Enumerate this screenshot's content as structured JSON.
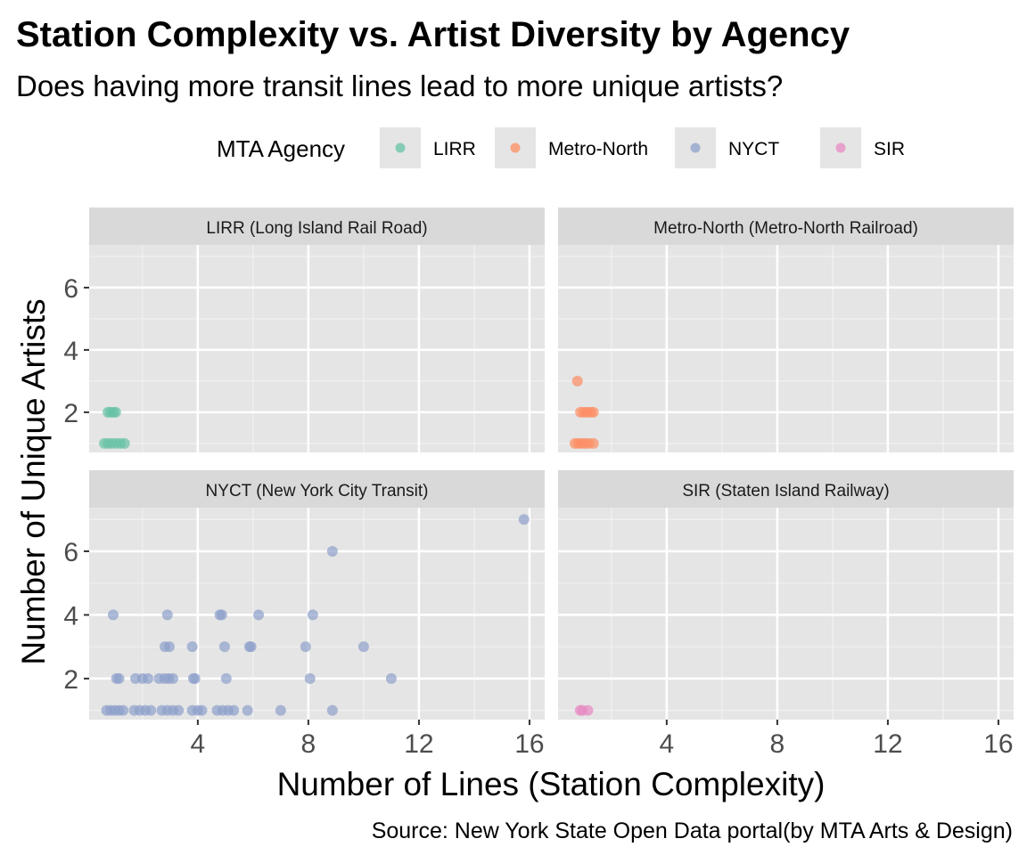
{
  "chart_data": {
    "type": "scatter",
    "title": "Station Complexity vs. Artist Diversity by Agency",
    "subtitle": "Does having more transit lines lead to more unique artists?",
    "xlabel": "Number of Lines (Station Complexity)",
    "ylabel": "Number of Unique Artists",
    "caption": "Source: New York State Open Data portal(by MTA Arts & Design)",
    "xlim": [
      0.07,
      16.55
    ],
    "ylim": [
      0.71,
      7.37
    ],
    "xticks": [
      4,
      8,
      12,
      16
    ],
    "yticks": [
      2,
      4,
      6
    ],
    "grid": true,
    "legend": {
      "title": "MTA Agency",
      "placement": "top",
      "entries": [
        {
          "label": "LIRR",
          "color": "#66c2a5"
        },
        {
          "label": "Metro-North",
          "color": "#fc8d62"
        },
        {
          "label": "NYCT",
          "color": "#8da0cb"
        },
        {
          "label": "SIR",
          "color": "#e78ac3"
        }
      ]
    },
    "facets": [
      {
        "label": "LIRR (Long Island Rail Road)",
        "color": "#66c2a5",
        "points": [
          [
            0.75,
            2
          ],
          [
            0.85,
            2
          ],
          [
            0.95,
            2
          ],
          [
            1.03,
            2
          ],
          [
            0.62,
            1
          ],
          [
            0.75,
            1
          ],
          [
            0.9,
            1
          ],
          [
            1.05,
            1
          ],
          [
            1.2,
            1
          ],
          [
            1.35,
            1
          ]
        ]
      },
      {
        "label": "Metro-North (Metro-North Railroad)",
        "color": "#fc8d62",
        "points": [
          [
            0.77,
            3
          ],
          [
            0.88,
            2
          ],
          [
            1.0,
            2
          ],
          [
            1.12,
            2
          ],
          [
            1.25,
            2
          ],
          [
            1.35,
            2
          ],
          [
            0.68,
            1
          ],
          [
            0.8,
            1
          ],
          [
            0.92,
            1
          ],
          [
            1.05,
            1
          ],
          [
            1.18,
            1
          ],
          [
            1.35,
            1
          ]
        ]
      },
      {
        "label": "NYCT (New York City Transit)",
        "color": "#8da0cb",
        "points": [
          [
            15.8,
            7
          ],
          [
            8.87,
            6
          ],
          [
            0.94,
            4
          ],
          [
            2.9,
            4
          ],
          [
            4.8,
            4
          ],
          [
            4.87,
            4
          ],
          [
            6.2,
            4
          ],
          [
            8.16,
            4
          ],
          [
            2.81,
            3
          ],
          [
            2.97,
            3
          ],
          [
            3.8,
            3
          ],
          [
            4.97,
            3
          ],
          [
            5.87,
            3
          ],
          [
            5.93,
            3
          ],
          [
            7.9,
            3
          ],
          [
            10.0,
            3
          ],
          [
            1.06,
            2
          ],
          [
            1.15,
            2
          ],
          [
            1.75,
            2
          ],
          [
            2.0,
            2
          ],
          [
            2.2,
            2
          ],
          [
            2.6,
            2
          ],
          [
            2.8,
            2
          ],
          [
            2.95,
            2
          ],
          [
            3.1,
            2
          ],
          [
            3.84,
            2
          ],
          [
            3.9,
            2
          ],
          [
            5.03,
            2
          ],
          [
            8.06,
            2
          ],
          [
            11.0,
            2
          ],
          [
            0.7,
            1
          ],
          [
            0.85,
            1
          ],
          [
            1.0,
            1
          ],
          [
            1.15,
            1
          ],
          [
            1.3,
            1
          ],
          [
            1.7,
            1
          ],
          [
            1.9,
            1
          ],
          [
            2.1,
            1
          ],
          [
            2.3,
            1
          ],
          [
            2.7,
            1
          ],
          [
            2.9,
            1
          ],
          [
            3.1,
            1
          ],
          [
            3.3,
            1
          ],
          [
            3.8,
            1
          ],
          [
            4.0,
            1
          ],
          [
            4.15,
            1
          ],
          [
            4.7,
            1
          ],
          [
            4.9,
            1
          ],
          [
            5.1,
            1
          ],
          [
            5.3,
            1
          ],
          [
            5.8,
            1
          ],
          [
            7.0,
            1
          ],
          [
            8.87,
            1
          ]
        ]
      },
      {
        "label": "SIR (Staten Island Railway)",
        "color": "#e78ac3",
        "points": [
          [
            0.87,
            1
          ],
          [
            0.95,
            1
          ],
          [
            1.15,
            1
          ]
        ]
      }
    ]
  }
}
